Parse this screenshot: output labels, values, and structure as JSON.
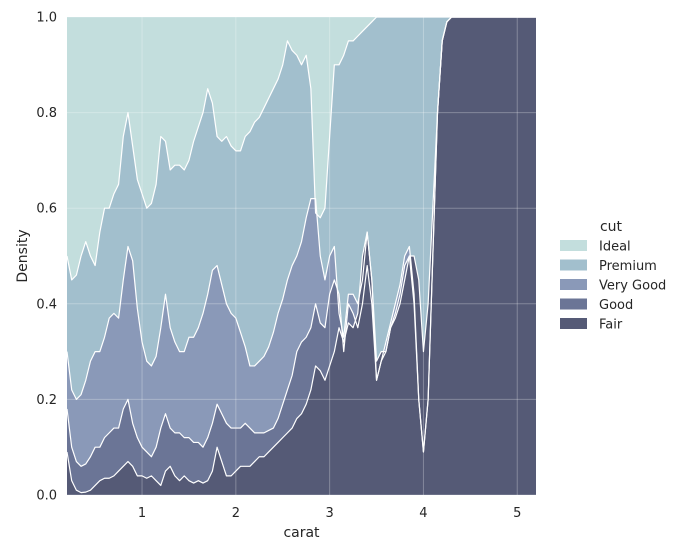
{
  "chart_data": {
    "type": "area",
    "xlabel": "carat",
    "ylabel": "Density",
    "xlim": [
      0.2,
      5.2
    ],
    "ylim": [
      0.0,
      1.0
    ],
    "x_ticks": [
      1,
      2,
      3,
      4,
      5
    ],
    "y_ticks": [
      "0.0",
      "0.2",
      "0.4",
      "0.6",
      "0.8",
      "1.0"
    ],
    "grid": true,
    "legend": {
      "title": "cut",
      "placement": "right"
    },
    "x": [
      0.2,
      0.25,
      0.3,
      0.35,
      0.4,
      0.45,
      0.5,
      0.55,
      0.6,
      0.65,
      0.7,
      0.75,
      0.8,
      0.85,
      0.9,
      0.95,
      1.0,
      1.05,
      1.1,
      1.15,
      1.2,
      1.25,
      1.3,
      1.35,
      1.4,
      1.45,
      1.5,
      1.55,
      1.6,
      1.65,
      1.7,
      1.75,
      1.8,
      1.85,
      1.9,
      1.95,
      2.0,
      2.05,
      2.1,
      2.15,
      2.2,
      2.25,
      2.3,
      2.35,
      2.4,
      2.45,
      2.5,
      2.55,
      2.6,
      2.65,
      2.7,
      2.75,
      2.8,
      2.85,
      2.9,
      2.95,
      3.0,
      3.05,
      3.1,
      3.15,
      3.2,
      3.25,
      3.3,
      3.35,
      3.4,
      3.45,
      3.5,
      3.55,
      3.6,
      3.65,
      3.7,
      3.75,
      3.8,
      3.85,
      3.9,
      3.95,
      4.0,
      4.05,
      4.1,
      4.15,
      4.2,
      4.25,
      4.3,
      4.35,
      4.4,
      4.5,
      4.6,
      4.8,
      5.0,
      5.2
    ],
    "series": [
      {
        "name": "Fair",
        "color": "#555a76",
        "cumulative": [
          0.09,
          0.03,
          0.01,
          0.005,
          0.006,
          0.01,
          0.02,
          0.03,
          0.035,
          0.035,
          0.04,
          0.05,
          0.06,
          0.07,
          0.06,
          0.04,
          0.04,
          0.035,
          0.04,
          0.03,
          0.02,
          0.05,
          0.06,
          0.04,
          0.03,
          0.04,
          0.03,
          0.025,
          0.03,
          0.025,
          0.03,
          0.05,
          0.1,
          0.07,
          0.04,
          0.04,
          0.05,
          0.06,
          0.06,
          0.06,
          0.07,
          0.08,
          0.08,
          0.09,
          0.1,
          0.11,
          0.12,
          0.13,
          0.14,
          0.16,
          0.17,
          0.19,
          0.22,
          0.27,
          0.26,
          0.24,
          0.27,
          0.3,
          0.35,
          0.32,
          0.36,
          0.35,
          0.38,
          0.5,
          0.55,
          0.45,
          0.28,
          0.3,
          0.3,
          0.35,
          0.37,
          0.4,
          0.45,
          0.5,
          0.5,
          0.45,
          0.3,
          0.4,
          0.6,
          0.8,
          0.95,
          0.99,
          1.0,
          1.0,
          1.0,
          1.0,
          1.0,
          1.0,
          1.0,
          1.0
        ]
      },
      {
        "name": "Good",
        "color": "#6b7596",
        "cumulative": [
          0.18,
          0.1,
          0.07,
          0.06,
          0.065,
          0.08,
          0.1,
          0.1,
          0.12,
          0.13,
          0.14,
          0.14,
          0.18,
          0.2,
          0.15,
          0.12,
          0.1,
          0.09,
          0.08,
          0.1,
          0.14,
          0.17,
          0.14,
          0.13,
          0.13,
          0.12,
          0.12,
          0.11,
          0.11,
          0.1,
          0.12,
          0.15,
          0.19,
          0.17,
          0.15,
          0.14,
          0.14,
          0.14,
          0.15,
          0.14,
          0.13,
          0.13,
          0.13,
          0.135,
          0.14,
          0.16,
          0.19,
          0.22,
          0.25,
          0.3,
          0.32,
          0.33,
          0.35,
          0.4,
          0.36,
          0.35,
          0.42,
          0.45,
          0.42,
          0.3,
          0.4,
          0.38,
          0.35,
          0.4,
          0.48,
          0.4,
          0.24,
          0.28,
          0.3,
          0.35,
          0.38,
          0.42,
          0.48,
          0.5,
          0.4,
          0.2,
          0.09,
          0.2,
          0.5,
          0.8,
          0.95,
          0.99,
          1.0,
          1.0,
          1.0,
          1.0,
          1.0,
          1.0,
          1.0,
          1.0
        ]
      },
      {
        "name": "Very Good",
        "color": "#8a99b8",
        "cumulative": [
          0.3,
          0.22,
          0.2,
          0.21,
          0.24,
          0.28,
          0.3,
          0.3,
          0.33,
          0.37,
          0.38,
          0.37,
          0.45,
          0.52,
          0.49,
          0.39,
          0.32,
          0.28,
          0.27,
          0.29,
          0.35,
          0.42,
          0.35,
          0.32,
          0.3,
          0.3,
          0.33,
          0.33,
          0.35,
          0.38,
          0.42,
          0.47,
          0.48,
          0.44,
          0.4,
          0.38,
          0.37,
          0.34,
          0.31,
          0.27,
          0.27,
          0.28,
          0.29,
          0.31,
          0.34,
          0.38,
          0.41,
          0.45,
          0.48,
          0.5,
          0.53,
          0.58,
          0.62,
          0.62,
          0.5,
          0.45,
          0.5,
          0.52,
          0.38,
          0.33,
          0.42,
          0.42,
          0.4,
          0.45,
          0.55,
          0.45,
          0.24,
          0.28,
          0.32,
          0.36,
          0.4,
          0.44,
          0.5,
          0.52,
          0.42,
          0.2,
          0.09,
          0.2,
          0.5,
          0.8,
          0.95,
          0.99,
          1.0,
          1.0,
          1.0,
          1.0,
          1.0,
          1.0,
          1.0,
          1.0
        ]
      },
      {
        "name": "Premium",
        "color": "#a2bfcd",
        "cumulative": [
          0.5,
          0.45,
          0.46,
          0.5,
          0.53,
          0.5,
          0.48,
          0.55,
          0.6,
          0.6,
          0.63,
          0.65,
          0.75,
          0.8,
          0.73,
          0.66,
          0.63,
          0.6,
          0.61,
          0.65,
          0.75,
          0.74,
          0.68,
          0.69,
          0.69,
          0.68,
          0.7,
          0.74,
          0.77,
          0.8,
          0.85,
          0.82,
          0.75,
          0.74,
          0.75,
          0.73,
          0.72,
          0.72,
          0.75,
          0.76,
          0.78,
          0.79,
          0.81,
          0.83,
          0.85,
          0.87,
          0.9,
          0.95,
          0.93,
          0.92,
          0.9,
          0.92,
          0.85,
          0.59,
          0.58,
          0.6,
          0.75,
          0.9,
          0.9,
          0.92,
          0.95,
          0.95,
          0.96,
          0.97,
          0.98,
          0.99,
          1.0,
          1.0,
          1.0,
          1.0,
          1.0,
          1.0,
          1.0,
          1.0,
          1.0,
          1.0,
          1.0,
          1.0,
          1.0,
          1.0,
          1.0,
          1.0,
          1.0,
          1.0,
          1.0,
          1.0,
          1.0,
          1.0,
          1.0,
          1.0
        ]
      },
      {
        "name": "Ideal",
        "color": "#c3dedd",
        "cumulative": [
          1.0,
          1.0,
          1.0,
          1.0,
          1.0,
          1.0,
          1.0,
          1.0,
          1.0,
          1.0,
          1.0,
          1.0,
          1.0,
          1.0,
          1.0,
          1.0,
          1.0,
          1.0,
          1.0,
          1.0,
          1.0,
          1.0,
          1.0,
          1.0,
          1.0,
          1.0,
          1.0,
          1.0,
          1.0,
          1.0,
          1.0,
          1.0,
          1.0,
          1.0,
          1.0,
          1.0,
          1.0,
          1.0,
          1.0,
          1.0,
          1.0,
          1.0,
          1.0,
          1.0,
          1.0,
          1.0,
          1.0,
          1.0,
          1.0,
          1.0,
          1.0,
          1.0,
          1.0,
          1.0,
          1.0,
          1.0,
          1.0,
          1.0,
          1.0,
          1.0,
          1.0,
          1.0,
          1.0,
          1.0,
          1.0,
          1.0,
          1.0,
          1.0,
          1.0,
          1.0,
          1.0,
          1.0,
          1.0,
          1.0,
          1.0,
          1.0,
          1.0,
          1.0,
          1.0,
          1.0,
          1.0,
          1.0,
          1.0,
          1.0,
          1.0,
          1.0,
          1.0,
          1.0,
          1.0,
          1.0
        ]
      }
    ],
    "legend_order": [
      "Ideal",
      "Premium",
      "Very Good",
      "Good",
      "Fair"
    ]
  },
  "colors": {
    "plot_background": "#eaeaf2",
    "grid": "#ffffff",
    "text": "#262626"
  }
}
